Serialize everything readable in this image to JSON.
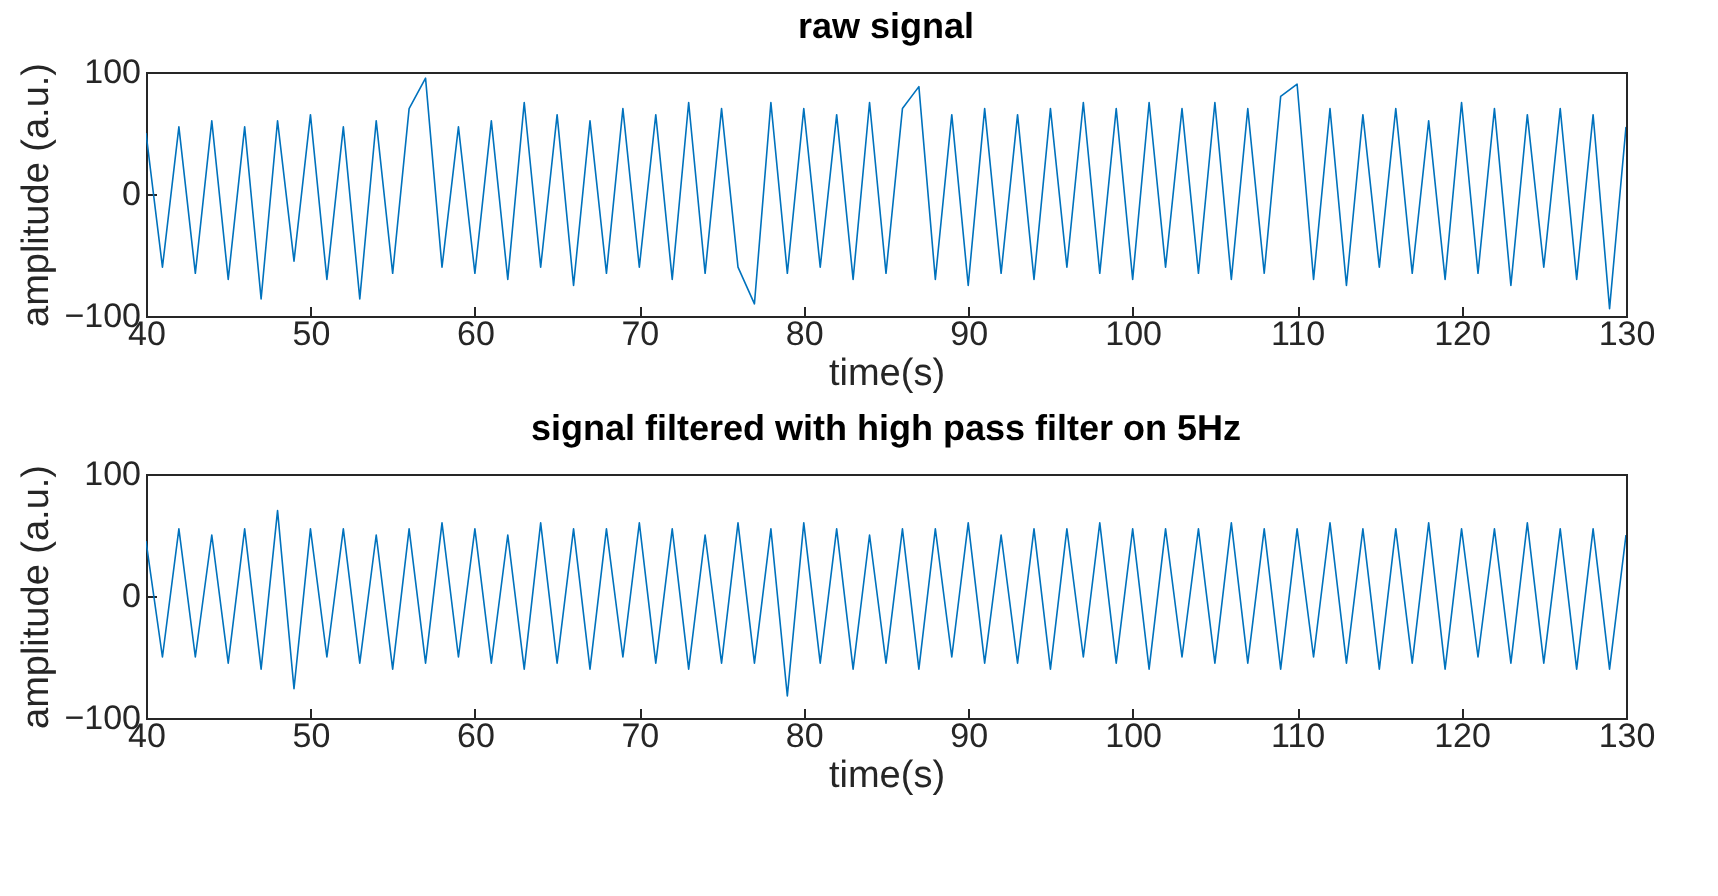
{
  "chart_data": [
    {
      "type": "line",
      "title": "raw signal",
      "xlabel": "time(s)",
      "ylabel": "amplitude (a.u.)",
      "xlim": [
        40,
        130
      ],
      "xticks": [
        40,
        50,
        60,
        70,
        80,
        90,
        100,
        110,
        120,
        130
      ],
      "ylim": [
        -100,
        100
      ],
      "yticks": [
        -100,
        0,
        100
      ],
      "x": [
        40,
        41,
        42,
        43,
        44,
        45,
        46,
        47,
        48,
        49,
        50,
        51,
        52,
        53,
        54,
        55,
        56,
        57,
        58,
        59,
        60,
        61,
        62,
        63,
        64,
        65,
        66,
        67,
        68,
        69,
        70,
        71,
        72,
        73,
        74,
        75,
        76,
        77,
        78,
        79,
        80,
        81,
        82,
        83,
        84,
        85,
        86,
        87,
        88,
        89,
        90,
        91,
        92,
        93,
        94,
        95,
        96,
        97,
        98,
        99,
        100,
        101,
        102,
        103,
        104,
        105,
        106,
        107,
        108,
        109,
        110,
        111,
        112,
        113,
        114,
        115,
        116,
        117,
        118,
        119,
        120,
        121,
        122,
        123,
        124,
        125,
        126,
        127,
        128,
        129,
        130
      ],
      "series": [
        {
          "color": "#0072bd",
          "values": [
            50,
            -60,
            55,
            -65,
            60,
            -70,
            55,
            -86,
            60,
            -55,
            65,
            -70,
            55,
            -86,
            60,
            -65,
            70,
            95,
            -60,
            55,
            -65,
            60,
            -70,
            75,
            -60,
            65,
            -75,
            60,
            -65,
            70,
            -60,
            65,
            -70,
            75,
            -65,
            70,
            -60,
            -90,
            75,
            -65,
            70,
            -60,
            65,
            -70,
            75,
            -65,
            70,
            88,
            -70,
            65,
            -75,
            70,
            -65,
            65,
            -70,
            70,
            -60,
            75,
            -65,
            70,
            -70,
            75,
            -60,
            70,
            -65,
            75,
            -70,
            70,
            -65,
            80,
            90,
            -70,
            70,
            -75,
            65,
            -60,
            70,
            -65,
            60,
            -70,
            75,
            -65,
            70,
            -75,
            65,
            -60,
            70,
            -70,
            65,
            -94,
            55
          ]
        }
      ]
    },
    {
      "type": "line",
      "title": "signal filtered with high pass filter on 5Hz",
      "xlabel": "time(s)",
      "ylabel": "amplitude (a.u.)",
      "xlim": [
        40,
        130
      ],
      "xticks": [
        40,
        50,
        60,
        70,
        80,
        90,
        100,
        110,
        120,
        130
      ],
      "ylim": [
        -100,
        100
      ],
      "yticks": [
        -100,
        0,
        100
      ],
      "x": [
        40,
        41,
        42,
        43,
        44,
        45,
        46,
        47,
        48,
        49,
        50,
        51,
        52,
        53,
        54,
        55,
        56,
        57,
        58,
        59,
        60,
        61,
        62,
        63,
        64,
        65,
        66,
        67,
        68,
        69,
        70,
        71,
        72,
        73,
        74,
        75,
        76,
        77,
        78,
        79,
        80,
        81,
        82,
        83,
        84,
        85,
        86,
        87,
        88,
        89,
        90,
        91,
        92,
        93,
        94,
        95,
        96,
        97,
        98,
        99,
        100,
        101,
        102,
        103,
        104,
        105,
        106,
        107,
        108,
        109,
        110,
        111,
        112,
        113,
        114,
        115,
        116,
        117,
        118,
        119,
        120,
        121,
        122,
        123,
        124,
        125,
        126,
        127,
        128,
        129,
        130
      ],
      "series": [
        {
          "color": "#0072bd",
          "values": [
            45,
            -50,
            55,
            -50,
            50,
            -55,
            55,
            -60,
            70,
            -76,
            55,
            -50,
            55,
            -55,
            50,
            -60,
            55,
            -55,
            60,
            -50,
            55,
            -55,
            50,
            -60,
            60,
            -55,
            55,
            -60,
            55,
            -50,
            60,
            -55,
            55,
            -60,
            50,
            -55,
            60,
            -55,
            55,
            -82,
            60,
            -55,
            55,
            -60,
            50,
            -55,
            55,
            -60,
            55,
            -50,
            60,
            -55,
            50,
            -55,
            55,
            -60,
            55,
            -50,
            60,
            -55,
            55,
            -60,
            55,
            -50,
            55,
            -55,
            60,
            -55,
            55,
            -60,
            55,
            -50,
            60,
            -55,
            55,
            -60,
            55,
            -55,
            60,
            -60,
            55,
            -50,
            55,
            -55,
            60,
            -55,
            55,
            -60,
            55,
            -60,
            50
          ]
        }
      ]
    }
  ]
}
